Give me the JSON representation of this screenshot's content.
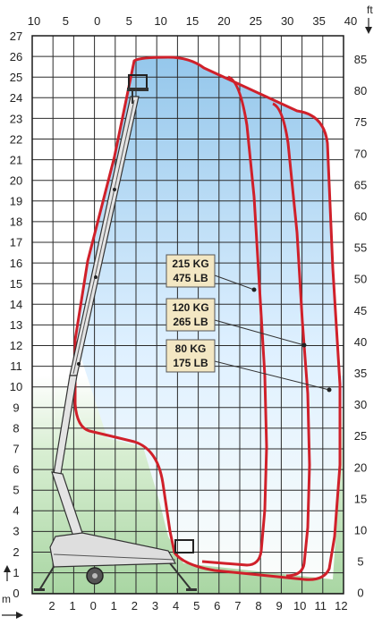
{
  "units": {
    "top_right": "ft",
    "bottom_left": "m"
  },
  "axes": {
    "left_meters": [
      "27",
      "26",
      "25",
      "24",
      "23",
      "22",
      "21",
      "20",
      "19",
      "18",
      "17",
      "16",
      "15",
      "14",
      "13",
      "12",
      "11",
      "10",
      "9",
      "8",
      "7",
      "6",
      "5",
      "4",
      "3",
      "2",
      "1",
      "0"
    ],
    "right_feet": [
      "85",
      "80",
      "75",
      "70",
      "65",
      "60",
      "55",
      "50",
      "45",
      "40",
      "35",
      "30",
      "25",
      "20",
      "15",
      "10",
      "5",
      "0"
    ],
    "top_feet": [
      "10",
      "5",
      "0",
      "5",
      "10",
      "15",
      "20",
      "25",
      "30",
      "35",
      "40"
    ],
    "bottom_meters": [
      "2",
      "1",
      "0",
      "1",
      "2",
      "3",
      "4",
      "5",
      "6",
      "7",
      "8",
      "9",
      "10",
      "11",
      "12"
    ]
  },
  "load_labels": [
    {
      "kg": "215 KG",
      "lb": "475 LB"
    },
    {
      "kg": "120 KG",
      "lb": "265 LB"
    },
    {
      "kg": "80 KG",
      "lb": "175 LB"
    }
  ],
  "colors": {
    "envelope": "#d0202a",
    "grid": "#2b2b2b",
    "sky_top": "#8fc4ea",
    "ground": "#b8ddb4",
    "label_box": "#f3e7c3"
  }
}
